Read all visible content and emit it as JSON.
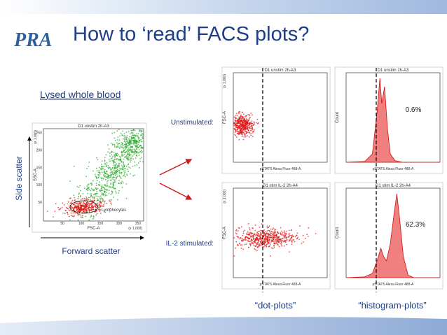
{
  "header": {
    "logo": "PRA",
    "title": "How to ‘read’  FACS plots?"
  },
  "overview": {
    "caption": "Lysed whole blood",
    "y_axis_caption": "Side scatter",
    "x_axis_caption": "Forward scatter",
    "plot": {
      "title": "D1 unstim 2h-A3",
      "x_label": "FSC-A",
      "y_label": "SSC-A",
      "gate_label": "Lymphocytes",
      "x_ticks": [
        "50",
        "100",
        "150",
        "200",
        "250"
      ],
      "y_ticks": [
        "50",
        "100",
        "150",
        "200",
        "250"
      ],
      "x_scale_note": "(x 1,000)",
      "y_scale_note": "(x 1,000)"
    }
  },
  "rows": [
    {
      "label": "Unstimulated:",
      "dot_plot": {
        "title": "D1 unstim 2h-A3",
        "x_label": "pSTAT5 Alexa Fluor 488-A",
        "y_label": "FSC-A",
        "y_scale_note": "(x 1,000)"
      },
      "histogram": {
        "title": "D1 unstim 2h-A3",
        "x_label": "pSTAT5 Alexa Fluor 488-A",
        "y_label": "Count",
        "percent": "0.6%"
      }
    },
    {
      "label": "IL-2 stimulated:",
      "dot_plot": {
        "title": "D1 stim IL-2 2h-A4",
        "x_label": "pSTAT5 Alexa Fluor 488-A",
        "y_label": "FSC-A",
        "y_scale_note": "(x 1,000)"
      },
      "histogram": {
        "title": "D1 stim IL-2 2h-A4",
        "x_label": "pSTAT5 Alexa Fluor 488-A",
        "y_label": "Count",
        "percent": "62.3%"
      }
    }
  ],
  "footer": {
    "dot_caption": "“dot-plots”",
    "histogram_caption": "“histogram-plots”"
  }
}
